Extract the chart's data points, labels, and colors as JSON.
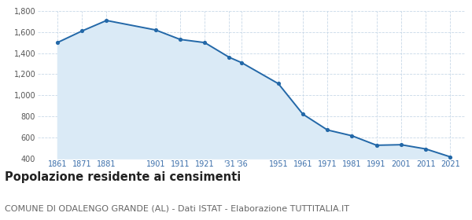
{
  "years": [
    1861,
    1871,
    1881,
    1901,
    1911,
    1921,
    1931,
    1936,
    1951,
    1961,
    1971,
    1981,
    1991,
    2001,
    2011,
    2021
  ],
  "population": [
    1500,
    1610,
    1710,
    1620,
    1530,
    1500,
    1360,
    1310,
    1110,
    820,
    670,
    615,
    525,
    530,
    490,
    415
  ],
  "ylim": [
    400,
    1800
  ],
  "yticks": [
    400,
    600,
    800,
    1000,
    1200,
    1400,
    1600,
    1800
  ],
  "line_color": "#2368a8",
  "fill_color": "#daeaf6",
  "marker_color": "#2368a8",
  "grid_color": "#c8d8e8",
  "background_color": "#ffffff",
  "title": "Popolazione residente ai censimenti",
  "subtitle": "COMUNE DI ODALENGO GRANDE (AL) - Dati ISTAT - Elaborazione TUTTITALIA.IT",
  "title_fontsize": 10.5,
  "subtitle_fontsize": 8,
  "title_color": "#222222",
  "subtitle_color": "#666666",
  "tick_label_color": "#3a6eaa",
  "xtick_positions": [
    1861,
    1871,
    1881,
    1901,
    1911,
    1921,
    1931,
    1936,
    1951,
    1961,
    1971,
    1981,
    1991,
    2001,
    2011,
    2021
  ],
  "xtick_labels": [
    "1861",
    "1871",
    "1881",
    "1901",
    "1911",
    "1921",
    "'31",
    "'36",
    "1951",
    "1961",
    "1971",
    "1981",
    "1991",
    "2001",
    "2011",
    "2021"
  ]
}
